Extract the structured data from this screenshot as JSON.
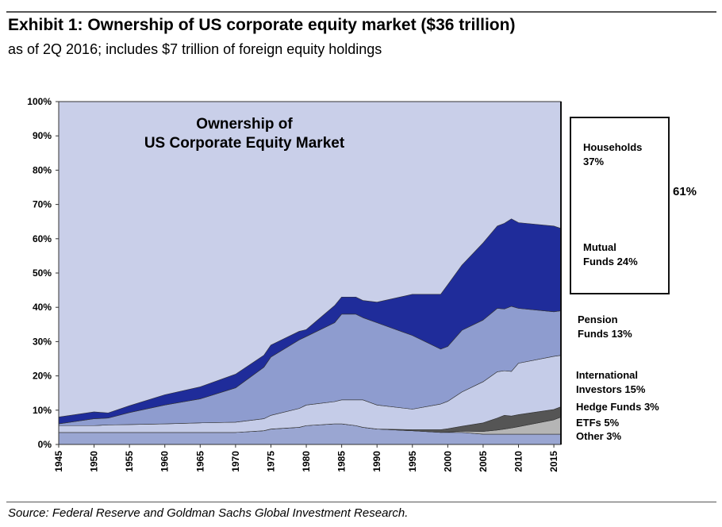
{
  "header": {
    "title": "Exhibit 1: Ownership of US corporate equity market ($36 trillion)",
    "subtitle": "as of 2Q 2016; includes $7 trillion of foreign equity holdings"
  },
  "footer": {
    "source": "Source: Federal Reserve and Goldman Sachs Global Investment Research."
  },
  "chart_data": {
    "type": "area",
    "stacked": true,
    "title": "Ownership of US Corporate Equity Market",
    "title_lines": [
      "Ownership of",
      "US Corporate Equity Market"
    ],
    "xlabel": "",
    "ylabel": "",
    "xlim": [
      1945,
      2016
    ],
    "ylim": [
      0,
      100
    ],
    "x_ticks": [
      "1945",
      "1950",
      "1955",
      "1960",
      "1965",
      "1970",
      "1975",
      "1980",
      "1985",
      "1990",
      "1995",
      "2000",
      "2005",
      "2010",
      "2015"
    ],
    "y_ticks": [
      "0%",
      "10%",
      "20%",
      "30%",
      "40%",
      "50%",
      "60%",
      "70%",
      "80%",
      "90%",
      "100%"
    ],
    "grid": false,
    "remainder_label": "Households",
    "x": [
      1945,
      1950,
      1952,
      1955,
      1960,
      1965,
      1970,
      1974,
      1975,
      1979,
      1980,
      1984,
      1985,
      1987,
      1988,
      1990,
      1995,
      1999,
      2000,
      2002,
      2005,
      2007,
      2008,
      2009,
      2010,
      2015,
      2016
    ],
    "series": [
      {
        "name": "Other",
        "color": "#9aa6d2",
        "values": [
          3.5,
          3.5,
          3.5,
          3.5,
          3.5,
          3.5,
          3.5,
          4,
          4.5,
          5,
          5.5,
          6,
          6,
          5.5,
          5,
          4.5,
          4,
          3.5,
          3.5,
          3.5,
          3,
          3,
          3,
          3,
          3,
          3,
          3
        ]
      },
      {
        "name": "ETFs",
        "color": "#b5b5b5",
        "values": [
          0,
          0,
          0,
          0,
          0,
          0,
          0,
          0,
          0,
          0,
          0,
          0,
          0,
          0,
          0,
          0,
          0,
          0,
          0.1,
          0.4,
          0.8,
          1.2,
          1.5,
          1.8,
          2.2,
          4.2,
          5
        ]
      },
      {
        "name": "Hedge Funds",
        "color": "#555555",
        "values": [
          0,
          0,
          0,
          0,
          0,
          0,
          0,
          0,
          0,
          0,
          0,
          0,
          0,
          0,
          0,
          0,
          0.3,
          0.8,
          1,
          1.4,
          2.5,
          3.5,
          4,
          3.5,
          3.5,
          3,
          3
        ]
      },
      {
        "name": "International Investors",
        "color": "#c5cce8",
        "values": [
          2,
          2,
          2.2,
          2.3,
          2.5,
          2.8,
          3,
          3.5,
          4,
          5.5,
          6,
          6.5,
          7,
          7.5,
          8,
          7,
          6,
          7.5,
          8,
          10,
          12,
          13.5,
          13,
          13,
          15,
          15.5,
          15
        ]
      },
      {
        "name": "Pension Funds",
        "color": "#8e9ccf",
        "values": [
          0.5,
          2,
          2,
          3.5,
          5.5,
          7,
          10,
          15,
          17,
          20,
          20,
          23,
          25,
          25,
          24,
          24,
          21.5,
          16,
          16,
          18,
          18,
          18.5,
          18,
          19,
          16,
          13,
          13
        ]
      },
      {
        "name": "Mutual Funds",
        "color": "#1f2c9a",
        "values": [
          2,
          2,
          1.5,
          2,
          3,
          3.5,
          4,
          3.5,
          3.5,
          2.5,
          2,
          5,
          5,
          5,
          5,
          6,
          12,
          16,
          18,
          19,
          22.5,
          24,
          25,
          25.5,
          25,
          25,
          24
        ]
      }
    ],
    "legend": {
      "placement": "right",
      "items": [
        {
          "label": "Households 37%"
        },
        {
          "label": "Mutual Funds 24%"
        },
        {
          "label": "Pension Funds 13%"
        },
        {
          "label": "International Investors 15%"
        },
        {
          "label": "Hedge Funds 3%"
        },
        {
          "label": "ETFs 5%"
        },
        {
          "label": "Other 3%"
        }
      ],
      "bracket_label": "61%"
    }
  }
}
